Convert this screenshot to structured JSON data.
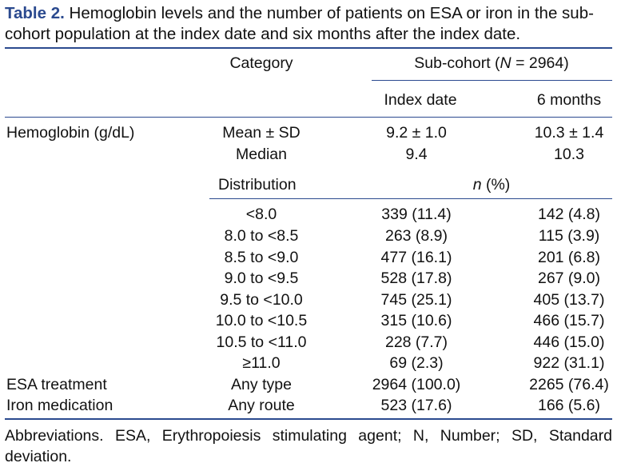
{
  "caption": {
    "label": "Table 2.",
    "text": "Hemoglobin levels and the number of patients on ESA or iron in the sub-cohort population at the index date and six months after the index date."
  },
  "header": {
    "category": "Category",
    "subcohort_prefix": "Sub-cohort (",
    "subcohort_n": "N",
    "subcohort_suffix": " = 2964)",
    "index_date": "Index date",
    "six_months": "6 months"
  },
  "hemoglobin": {
    "label": "Hemoglobin (g/dL)",
    "mean_label": "Mean ± SD",
    "mean_index": "9.2 ± 1.0",
    "mean_6m": "10.3 ± 1.4",
    "median_label": "Median",
    "median_index": "9.4",
    "median_6m": "10.3",
    "distribution_label": "Distribution",
    "n_label": "n",
    "pct_label": " (%)"
  },
  "distribution_rows": [
    {
      "category": "<8.0",
      "index": "339 (11.4)",
      "six": "142 (4.8)"
    },
    {
      "category": "8.0 to <8.5",
      "index": "263 (8.9)",
      "six": "115 (3.9)"
    },
    {
      "category": "8.5 to <9.0",
      "index": "477 (16.1)",
      "six": "201 (6.8)"
    },
    {
      "category": "9.0 to <9.5",
      "index": "528 (17.8)",
      "six": "267 (9.0)"
    },
    {
      "category": "9.5 to <10.0",
      "index": "745 (25.1)",
      "six": "405 (13.7)"
    },
    {
      "category": "10.0 to <10.5",
      "index": "315 (10.6)",
      "six": "466 (15.7)"
    },
    {
      "category": "10.5 to <11.0",
      "index": "228 (7.7)",
      "six": "446 (15.0)"
    },
    {
      "category": "≥11.0",
      "index": "69 (2.3)",
      "six": "922 (31.1)"
    }
  ],
  "treatment_rows": [
    {
      "label": "ESA treatment",
      "category": "Any type",
      "index": "2964 (100.0)",
      "six": "2265 (76.4)"
    },
    {
      "label": "Iron medication",
      "category": "Any route",
      "index": "523 (17.6)",
      "six": "166 (5.6)"
    }
  ],
  "footnote": "Abbreviations. ESA, Erythropoiesis stimulating agent; N, Number; SD, Standard deviation.",
  "colors": {
    "accent": "#2b4a8f",
    "text": "#111111"
  }
}
